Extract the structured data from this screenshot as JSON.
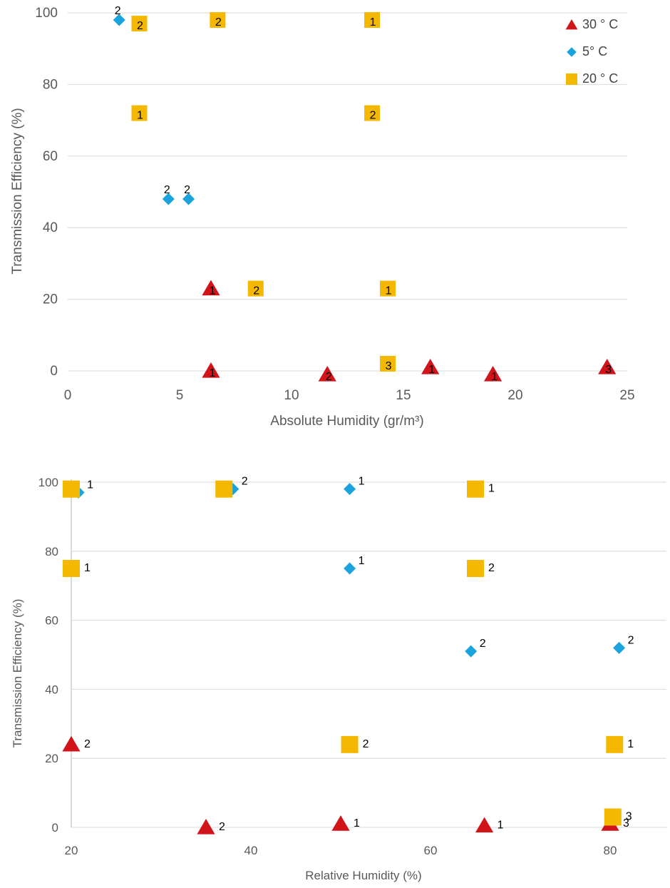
{
  "chart_data": [
    {
      "type": "scatter",
      "xlabel": "Absolute Humidity (gr/m³)",
      "ylabel": "Transmission Efficiency (%)",
      "xlim": [
        0,
        25
      ],
      "ylim": [
        0,
        100
      ],
      "xticks": [
        0,
        5,
        10,
        15,
        20,
        25
      ],
      "yticks": [
        0,
        20,
        40,
        60,
        80,
        100
      ],
      "grid": "horizontal",
      "legend": "top-right",
      "series": [
        {
          "name": "30 ° C",
          "marker": "triangle",
          "color": "#d0141a",
          "points": [
            {
              "x": 6.4,
              "y": 23,
              "label": "1"
            },
            {
              "x": 6.4,
              "y": 0,
              "label": "1"
            },
            {
              "x": 11.6,
              "y": -1,
              "label": "2"
            },
            {
              "x": 16.2,
              "y": 1,
              "label": "1"
            },
            {
              "x": 19.0,
              "y": -1,
              "label": "1"
            },
            {
              "x": 24.1,
              "y": 1,
              "label": "3"
            }
          ]
        },
        {
          "name": "5° C",
          "marker": "diamond",
          "color": "#1ba3dd",
          "points": [
            {
              "x": 2.3,
              "y": 98,
              "label": "2"
            },
            {
              "x": 4.5,
              "y": 48,
              "label": "2"
            },
            {
              "x": 5.4,
              "y": 48,
              "label": "2"
            }
          ]
        },
        {
          "name": "20 ° C",
          "marker": "square",
          "color": "#f5b800",
          "points": [
            {
              "x": 3.2,
              "y": 97,
              "label": "2"
            },
            {
              "x": 6.7,
              "y": 98,
              "label": "2"
            },
            {
              "x": 13.6,
              "y": 98,
              "label": "1"
            },
            {
              "x": 3.2,
              "y": 72,
              "label": "1"
            },
            {
              "x": 13.6,
              "y": 72,
              "label": "2"
            },
            {
              "x": 8.4,
              "y": 23,
              "label": "2"
            },
            {
              "x": 14.3,
              "y": 23,
              "label": "1"
            },
            {
              "x": 14.3,
              "y": 2,
              "label": "3"
            }
          ]
        }
      ]
    },
    {
      "type": "scatter",
      "xlabel": "Relative Humidity (%)",
      "ylabel": "Transmission Efficiency (%)",
      "xlim": [
        20,
        85
      ],
      "ylim": [
        0,
        100
      ],
      "xticks": [
        20,
        40,
        60,
        80
      ],
      "yticks": [
        0,
        20,
        40,
        60,
        80,
        100
      ],
      "grid": "horizontal",
      "legend": "none",
      "series": [
        {
          "name": "30 ° C",
          "marker": "triangle",
          "color": "#d0141a",
          "points": [
            {
              "x": 20,
              "y": 24,
              "label": "2"
            },
            {
              "x": 35,
              "y": 0,
              "label": "2"
            },
            {
              "x": 50,
              "y": 1,
              "label": "1"
            },
            {
              "x": 66,
              "y": 0.5,
              "label": "1"
            },
            {
              "x": 80,
              "y": 1,
              "label": "3"
            }
          ]
        },
        {
          "name": "5° C",
          "marker": "diamond",
          "color": "#1ba3dd",
          "points": [
            {
              "x": 20.8,
              "y": 97,
              "label": "1"
            },
            {
              "x": 38,
              "y": 98,
              "label": "2"
            },
            {
              "x": 51,
              "y": 98,
              "label": "1"
            },
            {
              "x": 51,
              "y": 75,
              "label": "1"
            },
            {
              "x": 64.5,
              "y": 51,
              "label": "2"
            },
            {
              "x": 81,
              "y": 52,
              "label": "2"
            }
          ]
        },
        {
          "name": "20 ° C",
          "marker": "square",
          "color": "#f5b800",
          "points": [
            {
              "x": 20,
              "y": 98,
              "label": ""
            },
            {
              "x": 37,
              "y": 98,
              "label": ""
            },
            {
              "x": 65,
              "y": 98,
              "label": "1"
            },
            {
              "x": 20,
              "y": 75,
              "label": "1"
            },
            {
              "x": 65,
              "y": 75,
              "label": "2"
            },
            {
              "x": 51,
              "y": 24,
              "label": "2"
            },
            {
              "x": 80.5,
              "y": 24,
              "label": "1"
            },
            {
              "x": 80.3,
              "y": 3,
              "label": "3"
            }
          ]
        }
      ]
    }
  ]
}
